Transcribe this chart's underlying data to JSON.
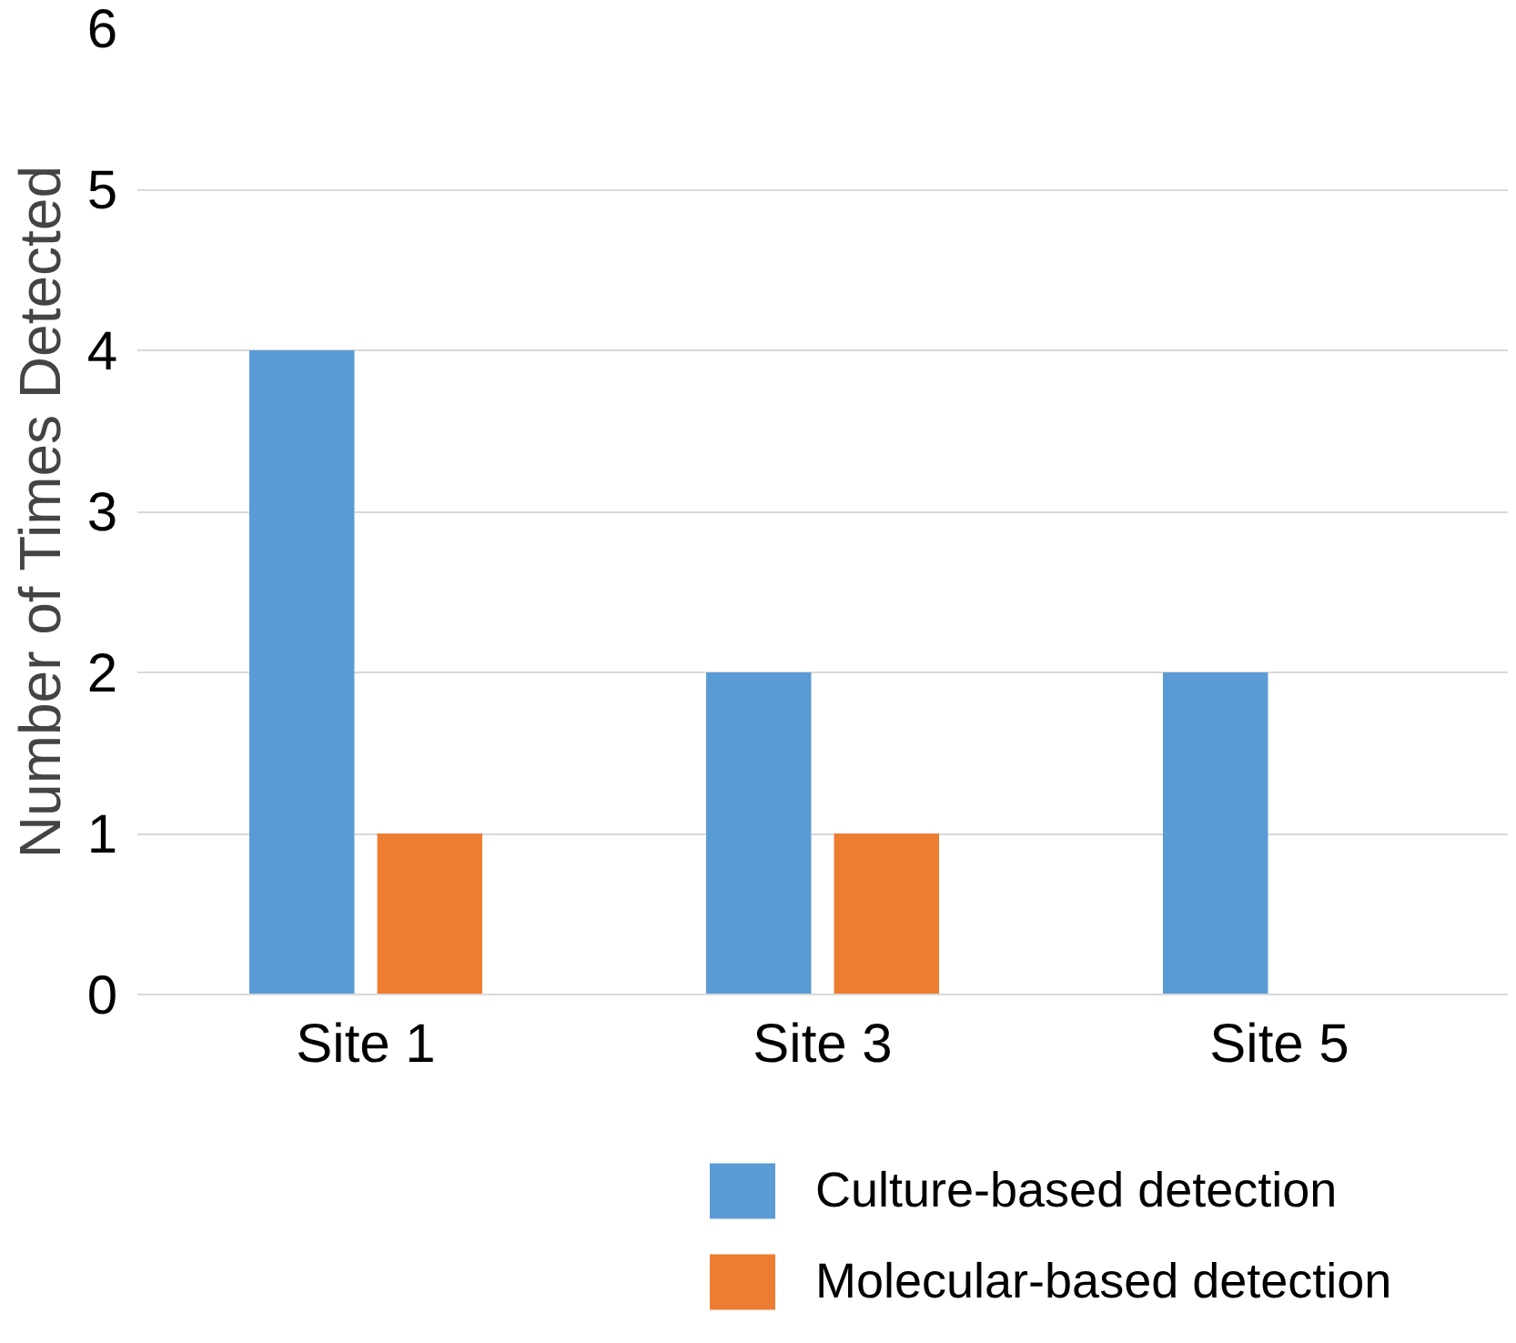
{
  "chart_data": {
    "type": "bar",
    "ylabel": "Number of Times Detected",
    "categories": [
      "Site 1",
      "Site 3",
      "Site 5"
    ],
    "series": [
      {
        "name": "Culture-based detection",
        "color": "#5b9bd5",
        "values": [
          4,
          2,
          2
        ]
      },
      {
        "name": "Molecular-based detection",
        "color": "#ed7d31",
        "values": [
          1,
          1,
          0
        ]
      }
    ],
    "ylim": [
      0,
      6
    ],
    "yticks": [
      0,
      1,
      2,
      3,
      4,
      5,
      6
    ],
    "grid": "y",
    "legend": "bottom"
  }
}
